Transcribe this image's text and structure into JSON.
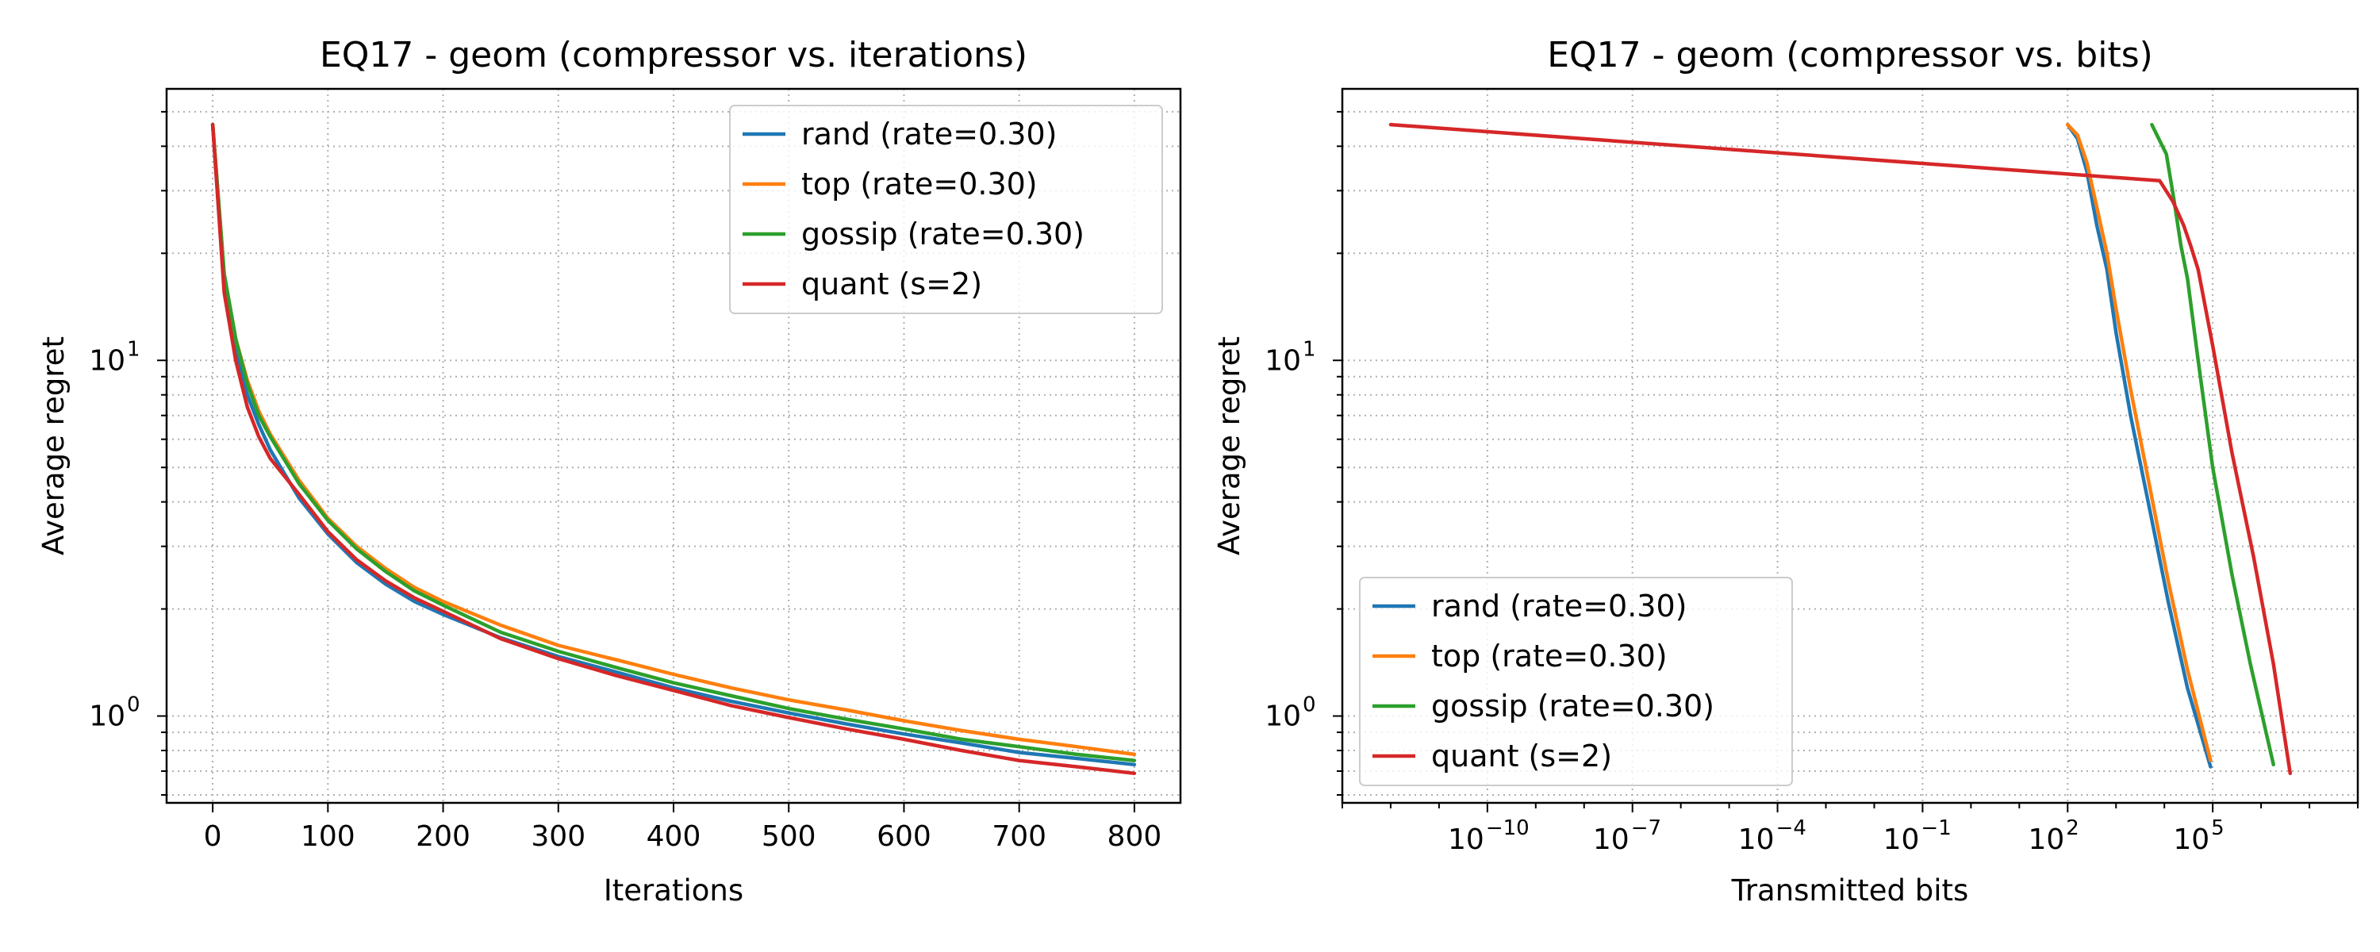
{
  "chart_data": [
    {
      "type": "line",
      "title": "EQ17 - geom (compressor vs. iterations)",
      "xlabel": "Iterations",
      "ylabel": "Average regret",
      "xscale": "linear",
      "yscale": "log",
      "xlim": [
        -40,
        840
      ],
      "ylim": [
        0.57,
        58
      ],
      "x_ticks": [
        0,
        100,
        200,
        300,
        400,
        500,
        600,
        700,
        800
      ],
      "x_tick_labels": [
        "0",
        "100",
        "200",
        "300",
        "400",
        "500",
        "600",
        "700",
        "800"
      ],
      "y_ticks": [
        1,
        10
      ],
      "y_tick_labels": [
        {
          "base": "10",
          "exp": "0"
        },
        {
          "base": "10",
          "exp": "1"
        }
      ],
      "grid": true,
      "legend_position": "top-right",
      "series": [
        {
          "name": "rand (rate=0.30)",
          "color": "#1f77b4",
          "x": [
            0,
            10,
            20,
            30,
            40,
            50,
            75,
            100,
            125,
            150,
            175,
            200,
            250,
            300,
            350,
            400,
            450,
            500,
            550,
            600,
            650,
            700,
            750,
            800
          ],
          "y": [
            46,
            16,
            10.5,
            8.0,
            6.6,
            5.6,
            4.1,
            3.25,
            2.7,
            2.35,
            2.1,
            1.93,
            1.66,
            1.47,
            1.33,
            1.2,
            1.1,
            1.02,
            0.95,
            0.89,
            0.84,
            0.79,
            0.76,
            0.73
          ]
        },
        {
          "name": "top (rate=0.30)",
          "color": "#ff7f0e",
          "x": [
            0,
            10,
            20,
            30,
            40,
            50,
            75,
            100,
            125,
            150,
            175,
            200,
            250,
            300,
            350,
            400,
            450,
            500,
            550,
            600,
            650,
            700,
            750,
            800
          ],
          "y": [
            46,
            17.5,
            11.5,
            8.8,
            7.2,
            6.2,
            4.6,
            3.6,
            3.0,
            2.6,
            2.3,
            2.1,
            1.8,
            1.58,
            1.44,
            1.31,
            1.2,
            1.11,
            1.04,
            0.97,
            0.91,
            0.86,
            0.82,
            0.78
          ]
        },
        {
          "name": "gossip (rate=0.30)",
          "color": "#2ca02c",
          "x": [
            0,
            10,
            20,
            30,
            40,
            50,
            75,
            100,
            125,
            150,
            175,
            200,
            250,
            300,
            350,
            400,
            450,
            500,
            550,
            600,
            650,
            700,
            750,
            800
          ],
          "y": [
            46,
            17.5,
            11.5,
            8.6,
            7.0,
            6.1,
            4.5,
            3.55,
            2.95,
            2.55,
            2.25,
            2.05,
            1.72,
            1.52,
            1.37,
            1.24,
            1.14,
            1.05,
            0.98,
            0.92,
            0.86,
            0.82,
            0.78,
            0.75
          ]
        },
        {
          "name": "quant (s=2)",
          "color": "#d62728",
          "x": [
            0,
            10,
            20,
            30,
            40,
            50,
            75,
            100,
            125,
            150,
            175,
            200,
            250,
            300,
            350,
            400,
            450,
            500,
            550,
            600,
            650,
            700,
            750,
            800
          ],
          "y": [
            46,
            15.5,
            10.0,
            7.4,
            6.1,
            5.3,
            4.2,
            3.3,
            2.75,
            2.4,
            2.15,
            1.97,
            1.65,
            1.45,
            1.3,
            1.18,
            1.07,
            0.99,
            0.92,
            0.86,
            0.8,
            0.75,
            0.72,
            0.69
          ]
        }
      ]
    },
    {
      "type": "line",
      "title": "EQ17 - geom (compressor vs. bits)",
      "xlabel": "Transmitted bits",
      "ylabel": "Average regret",
      "xscale": "log",
      "yscale": "log",
      "xlim": [
        1e-13,
        100000000.0
      ],
      "ylim": [
        0.57,
        58
      ],
      "x_ticks": [
        1e-10,
        1e-07,
        0.0001,
        0.1,
        100,
        100000
      ],
      "x_tick_labels": [
        {
          "base": "10",
          "exp": "−10"
        },
        {
          "base": "10",
          "exp": "−7"
        },
        {
          "base": "10",
          "exp": "−4"
        },
        {
          "base": "10",
          "exp": "−1"
        },
        {
          "base": "10",
          "exp": "2"
        },
        {
          "base": "10",
          "exp": "5"
        }
      ],
      "y_ticks": [
        1,
        10
      ],
      "y_tick_labels": [
        {
          "base": "10",
          "exp": "0"
        },
        {
          "base": "10",
          "exp": "1"
        }
      ],
      "grid": true,
      "legend_position": "bottom-left",
      "series": [
        {
          "name": "rand (rate=0.30)",
          "color": "#1f77b4",
          "x": [
            100,
            160,
            250,
            400,
            650,
            1000,
            2000,
            5000,
            12000,
            30000,
            90000
          ],
          "y": [
            46,
            42,
            34,
            24,
            18,
            12,
            7.0,
            3.8,
            2.1,
            1.2,
            0.72
          ]
        },
        {
          "name": "top (rate=0.30)",
          "color": "#ff7f0e",
          "x": [
            100,
            160,
            250,
            400,
            650,
            1000,
            2000,
            5000,
            12000,
            30000,
            90000
          ],
          "y": [
            46,
            43,
            36,
            27,
            20,
            14,
            8.3,
            4.4,
            2.4,
            1.35,
            0.75
          ]
        },
        {
          "name": "gossip (rate=0.30)",
          "color": "#2ca02c",
          "x": [
            5500,
            11000,
            16000,
            22000,
            30000,
            50000,
            100000,
            250000,
            600000,
            1800000
          ],
          "y": [
            46,
            38,
            28,
            21,
            17,
            10,
            5.0,
            2.5,
            1.4,
            0.73
          ]
        },
        {
          "name": "quant (s=2)",
          "color": "#d62728",
          "x": [
            1e-12,
            8000,
            15000,
            25000,
            35000,
            50000,
            100000,
            250000,
            700000,
            1800000,
            4000000
          ],
          "y": [
            46,
            32,
            28,
            24,
            21,
            18,
            11,
            5.5,
            2.8,
            1.4,
            0.69
          ]
        }
      ]
    }
  ]
}
